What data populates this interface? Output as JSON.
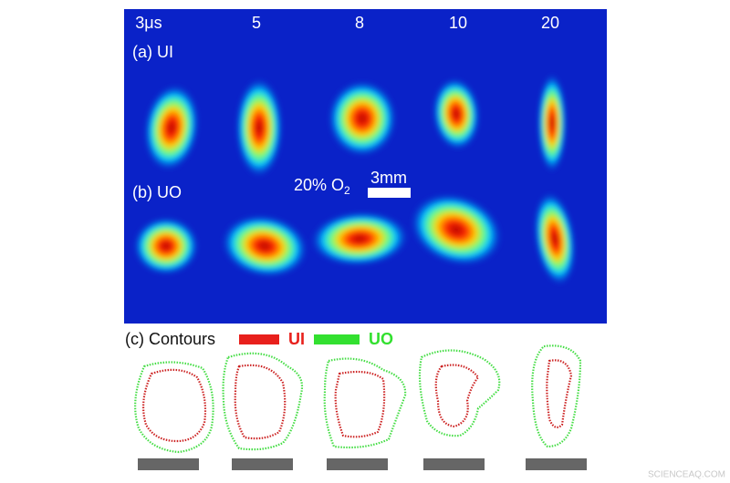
{
  "header": {
    "times": [
      "3μs",
      "5",
      "8",
      "10",
      "20"
    ]
  },
  "panels": {
    "a": "(a) UI",
    "b": "(b) UO",
    "c": "(c) Contours"
  },
  "legend": [
    {
      "label": "UI"
    },
    {
      "label": "UO"
    }
  ],
  "annotation": {
    "gas": "20% O",
    "gas_subscript": "2",
    "scale": "3mm"
  },
  "watermark": "SCIENCEAQ.COM"
}
